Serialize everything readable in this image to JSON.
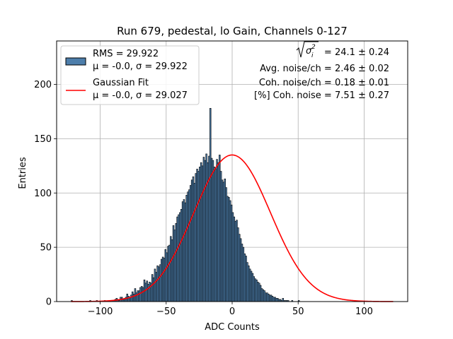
{
  "chart_data": {
    "type": "bar",
    "title": "Run 679, pedestal, lo Gain, Channels 0-127",
    "xlabel": "ADC Counts",
    "ylabel": "Entries",
    "xlim": [
      -133,
      133
    ],
    "ylim": [
      0,
      240
    ],
    "xticks": [
      -100,
      -50,
      0,
      50,
      100
    ],
    "xtick_labels": [
      "−100",
      "−50",
      "0",
      "50",
      "100"
    ],
    "yticks": [
      0,
      50,
      100,
      150,
      200
    ],
    "ytick_labels": [
      "0",
      "50",
      "100",
      "150",
      "200"
    ],
    "grid": true,
    "legend_position": "top-left",
    "histogram": {
      "name": "RMS = 29.922",
      "stats": "μ = -0.0, σ = 29.922",
      "color": "#4d7eab",
      "edge_color": "#000000",
      "bin_start": -122,
      "bin_width": 1,
      "counts": [
        1,
        0,
        0,
        0,
        0,
        0,
        0,
        0,
        0,
        0,
        0,
        0,
        0,
        0,
        1,
        0,
        0,
        0,
        0,
        1,
        0,
        0,
        0,
        0,
        0,
        1,
        0,
        0,
        0,
        1,
        1,
        1,
        1,
        2,
        3,
        2,
        1,
        4,
        4,
        2,
        3,
        4,
        7,
        5,
        4,
        6,
        9,
        7,
        12,
        8,
        10,
        10,
        13,
        14,
        13,
        20,
        17,
        19,
        16,
        18,
        17,
        25,
        22,
        30,
        27,
        33,
        32,
        34,
        39,
        41,
        40,
        48,
        45,
        51,
        52,
        60,
        57,
        70,
        66,
        72,
        78,
        80,
        82,
        85,
        92,
        94,
        91,
        98,
        101,
        103,
        107,
        112,
        115,
        109,
        118,
        122,
        120,
        124,
        128,
        125,
        133,
        130,
        136,
        128,
        134,
        178,
        132,
        130,
        124,
        122,
        131,
        128,
        135,
        120,
        112,
        110,
        113,
        105,
        97,
        96,
        93,
        89,
        82,
        78,
        74,
        75,
        68,
        62,
        58,
        53,
        50,
        44,
        42,
        36,
        33,
        30,
        28,
        26,
        23,
        21,
        20,
        18,
        17,
        15,
        12,
        11,
        10,
        8,
        8,
        7,
        6,
        6,
        5,
        4,
        4,
        3,
        3,
        2,
        2,
        1,
        3,
        1,
        1,
        1,
        1,
        0,
        0,
        1,
        0,
        0,
        0,
        0,
        1,
        0,
        0,
        0,
        0,
        0,
        0,
        0,
        0,
        0,
        0,
        0,
        0,
        0,
        0,
        0,
        0,
        0,
        0,
        0,
        0,
        0,
        0,
        0,
        0,
        0,
        0,
        0,
        0,
        0,
        0,
        0,
        0,
        0,
        0,
        0,
        0,
        0,
        0,
        0,
        0,
        0,
        0,
        0,
        0,
        0,
        0,
        0,
        0,
        0,
        0,
        0,
        0,
        0,
        0,
        0,
        0,
        0,
        0,
        0,
        0,
        0,
        0,
        0,
        0,
        0,
        0,
        0,
        0,
        0,
        0,
        0,
        0,
        0,
        0,
        0,
        0
      ]
    },
    "fit": {
      "name": "Gaussian Fit",
      "stats": "μ = -0.0, σ = 29.027",
      "mu": 0.0,
      "sigma": 29.027,
      "amplitude": 135,
      "x_range": [
        -122,
        122
      ],
      "color": "#ff0000"
    },
    "annotations": {
      "sqrt_label": "= 24.1 ± 0.24",
      "line2": "Avg. noise/ch = 2.46 ± 0.02",
      "line3": "Coh. noise/ch = 0.18 ± 0.01",
      "line4": "[%] Coh. noise = 7.51 ± 0.27"
    }
  }
}
